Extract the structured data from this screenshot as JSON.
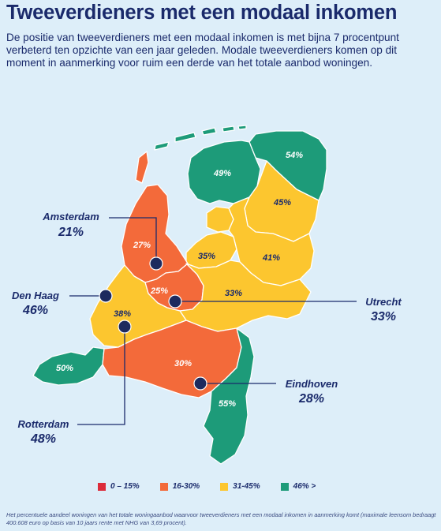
{
  "title": "Tweeverdieners met een modaal inkomen",
  "intro": "De positie van tweeverdieners met een modaal inkomen is met bijna 7 procentpunt verbeterd ten opzichte van een jaar geleden. Modale tweeverdieners komen op dit moment in aanmerking voor ruim een derde van het totale aanbod woningen.",
  "colors": {
    "red": "#dc2b3a",
    "orange": "#f36a3a",
    "yellow": "#fcc62f",
    "green": "#1d9b79",
    "navy": "#1a2a6b"
  },
  "provinces": [
    {
      "id": "groningen",
      "value": "54%",
      "color": "#1d9b79"
    },
    {
      "id": "friesland",
      "value": "49%",
      "color": "#1d9b79"
    },
    {
      "id": "drenthe",
      "value": "45%",
      "color": "#fcc62f"
    },
    {
      "id": "flevoland",
      "value": "35%",
      "color": "#fcc62f"
    },
    {
      "id": "overijssel",
      "value": "41%",
      "color": "#fcc62f"
    },
    {
      "id": "noord-holland",
      "value": "27%",
      "color": "#f36a3a"
    },
    {
      "id": "utrecht-prov",
      "value": "25%",
      "color": "#f36a3a"
    },
    {
      "id": "gelderland",
      "value": "33%",
      "color": "#fcc62f"
    },
    {
      "id": "zuid-holland",
      "value": "38%",
      "color": "#fcc62f"
    },
    {
      "id": "zeeland",
      "value": "50%",
      "color": "#1d9b79"
    },
    {
      "id": "noord-brabant",
      "value": "30%",
      "color": "#f36a3a"
    },
    {
      "id": "limburg",
      "value": "55%",
      "color": "#1d9b79"
    }
  ],
  "cities": [
    {
      "name": "Amsterdam",
      "value": "21%"
    },
    {
      "name": "Den Haag",
      "value": "46%"
    },
    {
      "name": "Utrecht",
      "value": "33%"
    },
    {
      "name": "Rotterdam",
      "value": "48%"
    },
    {
      "name": "Eindhoven",
      "value": "28%"
    }
  ],
  "legend": [
    {
      "label": "0 – 15%",
      "color": "#dc2b3a"
    },
    {
      "label": "16-30%",
      "color": "#f36a3a"
    },
    {
      "label": "31-45%",
      "color": "#fcc62f"
    },
    {
      "label": "46% >",
      "color": "#1d9b79"
    }
  ],
  "footnote": "Het percentuele aandeel woningen van het totale woningaanbod waarvoor tweeverdieners met een modaal inkomen in aanmerking komt (maximale leensom bedraagt 400.608 euro op basis van 10 jaars rente met NHG van 3,69 procent)."
}
